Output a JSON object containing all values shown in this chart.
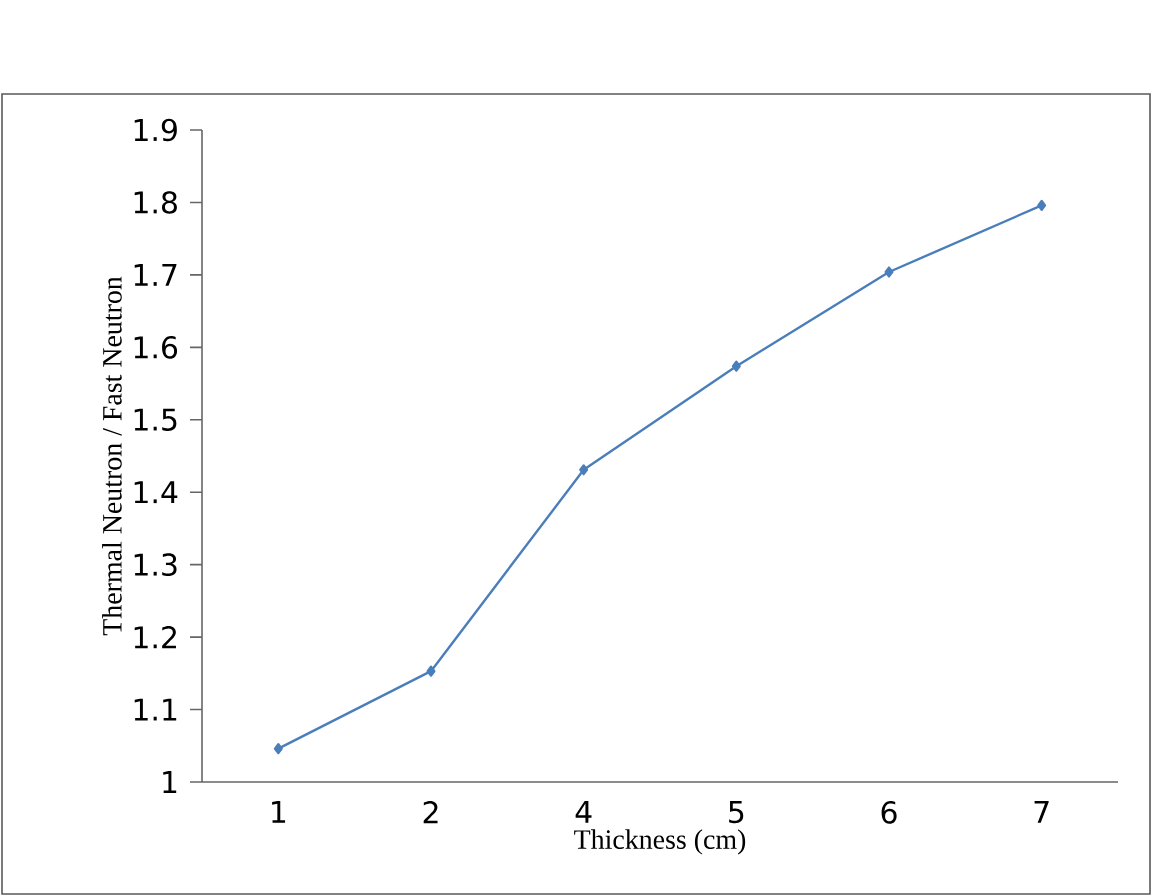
{
  "chart_data": {
    "type": "line",
    "xlabel": "Thickness (cm)",
    "ylabel": "Thermal Neutron / Fast Neutron",
    "categories": [
      "1",
      "2",
      "4",
      "5",
      "6",
      "7"
    ],
    "series": [
      {
        "color": "#4a7ebb",
        "values": [
          1.046,
          1.153,
          1.431,
          1.574,
          1.704,
          1.796
        ]
      }
    ],
    "ylim": [
      1,
      1.9
    ],
    "yticks": [
      1,
      1.1,
      1.2,
      1.3,
      1.4,
      1.5,
      1.6,
      1.7,
      1.8,
      1.9
    ],
    "marker": "diamond",
    "line_style": "solid",
    "grid": false,
    "legend": false
  }
}
